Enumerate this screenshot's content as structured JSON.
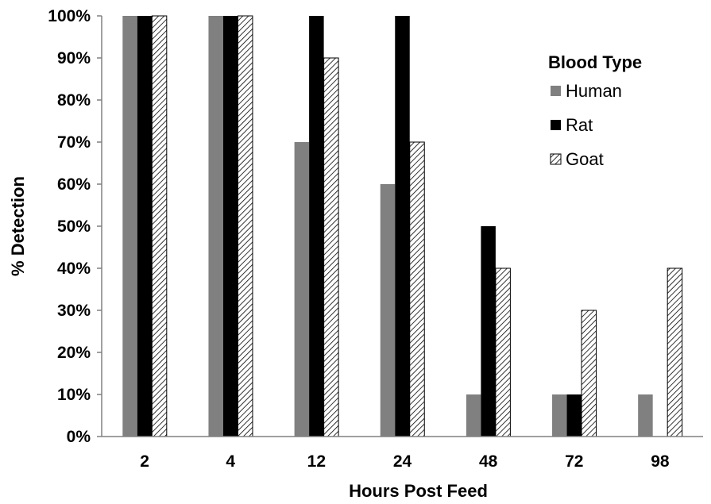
{
  "chart_data": {
    "type": "bar",
    "title": "",
    "xlabel": "Hours Post Feed",
    "ylabel": "% Detection",
    "categories": [
      "2",
      "4",
      "12",
      "24",
      "48",
      "72",
      "98"
    ],
    "ylim": [
      0,
      100
    ],
    "yticks": [
      "0%",
      "10%",
      "20%",
      "30%",
      "40%",
      "50%",
      "60%",
      "70%",
      "80%",
      "90%",
      "100%"
    ],
    "grid": false,
    "legend": {
      "title": "Blood Type",
      "position": "top-right"
    },
    "series": [
      {
        "name": "Human",
        "values": [
          100,
          100,
          70,
          60,
          10,
          10,
          10
        ],
        "fill": "#808080"
      },
      {
        "name": "Rat",
        "values": [
          100,
          100,
          100,
          100,
          50,
          10,
          0
        ],
        "fill": "#000000"
      },
      {
        "name": "Goat",
        "values": [
          100,
          100,
          90,
          70,
          40,
          30,
          40
        ],
        "fill": "hatch"
      }
    ]
  }
}
